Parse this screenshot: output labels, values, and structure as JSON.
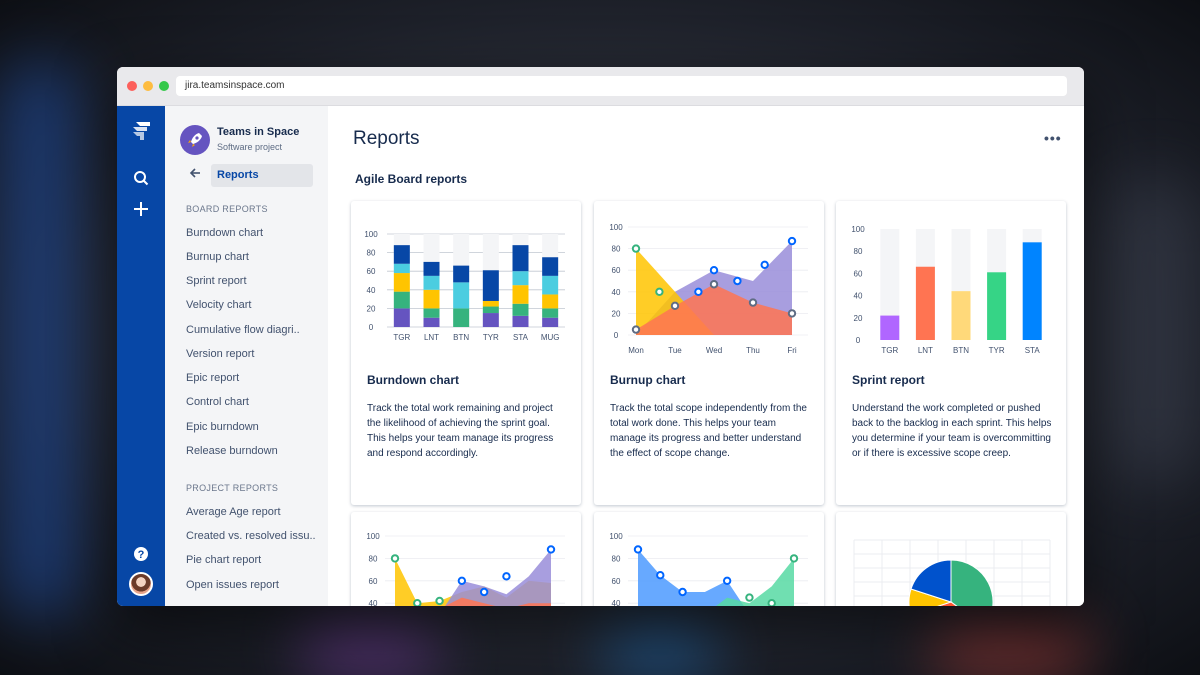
{
  "browser": {
    "url": "jira.teamsinspace.com"
  },
  "project": {
    "name": "Teams in Space",
    "type": "Software project"
  },
  "sidebar": {
    "back_label": "Reports",
    "board_reports_title": "BOARD REPORTS",
    "board_reports": [
      "Burndown chart",
      "Burnup chart",
      "Sprint report",
      "Velocity chart",
      "Cumulative flow diagri..",
      "Version report",
      "Epic report",
      "Control chart",
      "Epic burndown",
      "Release burndown"
    ],
    "project_reports_title": "PROJECT REPORTS",
    "project_reports": [
      "Average Age report",
      "Created vs. resolved issu..",
      "Pie chart report",
      "Open issues report"
    ]
  },
  "icons": {
    "global_nav": [
      "jira-logo-icon",
      "search-icon",
      "plus-icon",
      "help-icon",
      "user-avatar"
    ],
    "back": "arrow-left-icon",
    "more": "more-horizontal-icon"
  },
  "main": {
    "title": "Reports",
    "more_label": "•••",
    "subtitle": "Agile Board reports",
    "cards": [
      {
        "title": "Burndown chart",
        "desc": "Track the total work remaining and project the likelihood of achieving the sprint goal. This helps your team manage its progress and respond accordingly."
      },
      {
        "title": "Burnup chart",
        "desc": "Track the total scope independently from the total work done. This helps your team manage its progress and better understand the effect of scope change."
      },
      {
        "title": "Sprint report",
        "desc": "Understand the work completed or pushed back to the backlog in each sprint. This helps you determine if your team is overcommitting or if there is excessive scope creep."
      }
    ]
  },
  "colors": {
    "nav_bg": "#0747a6",
    "accent": "#0052cc",
    "sidebar_bg": "#f4f5f7"
  },
  "chart_data": [
    {
      "type": "bar",
      "stacked": true,
      "categories": [
        "TGR",
        "LNT",
        "BTN",
        "TYR",
        "STA",
        "MUG"
      ],
      "ylim": [
        0,
        100
      ],
      "yticks": [
        0,
        20,
        40,
        60,
        80,
        100
      ],
      "series": [
        {
          "color": "#6554c0",
          "values": [
            20,
            10,
            0,
            15,
            12,
            10
          ]
        },
        {
          "color": "#36b37e",
          "values": [
            18,
            10,
            20,
            7,
            13,
            10
          ]
        },
        {
          "color": "#ffc400",
          "values": [
            20,
            20,
            0,
            6,
            20,
            15
          ]
        },
        {
          "color": "#4bcde0",
          "values": [
            10,
            15,
            28,
            0,
            15,
            20
          ]
        },
        {
          "color": "#0747a6",
          "values": [
            20,
            15,
            18,
            33,
            28,
            20
          ]
        }
      ]
    },
    {
      "type": "area",
      "categories": [
        "Mon",
        "Tue",
        "Wed",
        "Thu",
        "Fri"
      ],
      "ylim": [
        0,
        100
      ],
      "yticks": [
        0,
        20,
        40,
        60,
        80,
        100
      ],
      "series": [
        {
          "color": "#ffc400",
          "values": [
            80,
            40,
            0,
            0,
            0
          ]
        },
        {
          "color": "#ff7452",
          "values": [
            5,
            27,
            47,
            30,
            20
          ]
        },
        {
          "color": "#998dd9",
          "values": [
            0,
            40,
            60,
            50,
            87
          ]
        }
      ]
    },
    {
      "type": "bar",
      "categories": [
        "TGR",
        "LNT",
        "BTN",
        "TYR",
        "STA"
      ],
      "ylim": [
        0,
        100
      ],
      "yticks": [
        0,
        20,
        40,
        60,
        80,
        100
      ],
      "values": [
        22,
        66,
        44,
        61,
        88
      ],
      "colors": [
        "#b066ff",
        "#ff7452",
        "#ffd97a",
        "#36d486",
        "#0084ff"
      ]
    },
    {
      "type": "area",
      "yticks": [
        40,
        60,
        80,
        100
      ],
      "series": [
        {
          "color": "#ffc400",
          "values": [
            80,
            40,
            42,
            50,
            55,
            45,
            60,
            58
          ]
        },
        {
          "color": "#ff7452",
          "values": [
            30,
            30,
            35,
            45,
            40,
            35,
            40,
            40
          ]
        },
        {
          "color": "#998dd9",
          "values": [
            30,
            30,
            30,
            60,
            55,
            48,
            64,
            88
          ]
        }
      ]
    },
    {
      "type": "area",
      "yticks": [
        40,
        60,
        80,
        100
      ],
      "series": [
        {
          "color": "#4c9aff",
          "values": [
            88,
            65,
            50,
            50,
            60,
            30,
            30,
            30
          ]
        },
        {
          "color": "#57d9a3",
          "values": [
            30,
            30,
            30,
            30,
            45,
            40,
            55,
            80
          ]
        }
      ]
    },
    {
      "type": "pie",
      "values": [
        35,
        35,
        10,
        20
      ],
      "colors": [
        "#36b37e",
        "#ff5630",
        "#ffc400",
        "#0052cc"
      ]
    }
  ]
}
